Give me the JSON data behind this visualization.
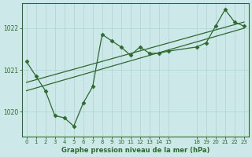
{
  "bg_color": "#cce8e8",
  "line_color": "#2d6a2d",
  "grid_color": "#aad4d4",
  "xlabel": "Graphe pression niveau de la mer (hPa)",
  "xlabel_color": "#2d6a2d",
  "ylabel_color": "#2d6a2d",
  "tick_color": "#2d6a2d",
  "xlim": [
    -0.5,
    23.5
  ],
  "ylim": [
    1019.4,
    1022.6
  ],
  "yticks": [
    1020,
    1021,
    1022
  ],
  "xticks": [
    0,
    1,
    2,
    3,
    4,
    5,
    6,
    7,
    8,
    9,
    10,
    11,
    12,
    13,
    14,
    15,
    18,
    19,
    20,
    21,
    22,
    23
  ],
  "jagged_x": [
    0,
    1,
    2,
    3,
    4,
    5,
    6,
    7,
    8,
    9,
    10,
    11,
    12,
    13,
    14,
    15,
    18,
    19,
    20,
    21,
    22,
    23
  ],
  "jagged_y": [
    1021.2,
    1020.85,
    1020.5,
    1019.9,
    1019.85,
    1019.65,
    1020.2,
    1020.6,
    1021.85,
    1021.7,
    1021.55,
    1021.35,
    1021.55,
    1021.4,
    1021.4,
    1021.45,
    1021.55,
    1021.65,
    1022.05,
    1022.45,
    1022.15,
    1022.05
  ],
  "trend1_x": [
    0,
    23
  ],
  "trend1_y": [
    1020.5,
    1022.0
  ],
  "trend2_x": [
    0,
    23
  ],
  "trend2_y": [
    1020.7,
    1022.15
  ]
}
